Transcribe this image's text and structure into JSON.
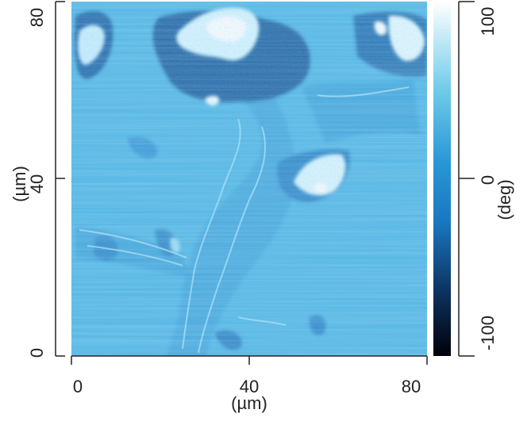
{
  "image": {
    "x_axis": {
      "ticks": [
        "0",
        "40",
        "80"
      ],
      "unit": "(µm)"
    },
    "y_axis": {
      "ticks": [
        "0",
        "40",
        "80"
      ],
      "unit": "(µm)"
    },
    "colorbar": {
      "ticks": [
        "-100",
        "0",
        "100"
      ],
      "unit": "(deg)"
    },
    "colors": {
      "base": "#4db5e4",
      "mid": "#2a95d3",
      "dark": "#1b5a8d",
      "bright": "#e9fbff"
    }
  }
}
